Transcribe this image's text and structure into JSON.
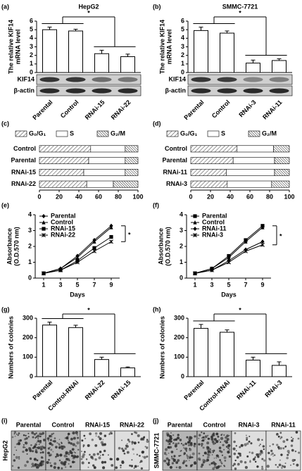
{
  "chart_data": [
    {
      "type": "bar",
      "label": "(a)",
      "title": "HepG2",
      "ylabel": [
        "The relative KIF14",
        "mRNA level"
      ],
      "categories": [
        "Parental",
        "Control",
        "RNAi-15",
        "RNAi-22"
      ],
      "values": [
        5.0,
        4.85,
        2.2,
        1.85
      ],
      "errors": [
        0.3,
        0.2,
        0.4,
        0.3
      ],
      "ylim": [
        0,
        6
      ],
      "yticks": [
        0,
        1,
        2,
        3,
        4,
        5,
        6
      ],
      "annotation": "*",
      "blot_labels": [
        "KIF14",
        "β-actin"
      ]
    },
    {
      "type": "bar",
      "label": "(b)",
      "title": "SMMC-7721",
      "ylabel": [
        "The relative KIF14",
        "mRNA level"
      ],
      "categories": [
        "Parental",
        "Control",
        "RNAi-3",
        "RNAi-11"
      ],
      "values": [
        4.9,
        4.6,
        1.1,
        1.4
      ],
      "errors": [
        0.4,
        0.25,
        0.35,
        0.2
      ],
      "ylim": [
        0,
        6
      ],
      "yticks": [
        0,
        1,
        2,
        3,
        4,
        5,
        6
      ],
      "annotation": "*",
      "blot_labels": [
        "KIF14",
        "β-actin"
      ]
    },
    {
      "type": "hbar-stacked",
      "label": "(c)",
      "categories": [
        "Control",
        "Parental",
        "RNAi-15",
        "RNAi-22"
      ],
      "series": [
        {
          "name": "G₀/G₁",
          "pattern": "hatch",
          "values": [
            52,
            50,
            45,
            48
          ]
        },
        {
          "name": "S",
          "pattern": "none",
          "values": [
            35,
            37,
            42,
            27
          ]
        },
        {
          "name": "G₂/M",
          "pattern": "dense-hatch",
          "values": [
            13,
            13,
            13,
            25
          ]
        }
      ],
      "xlim": [
        0,
        100
      ],
      "xticks": [
        0,
        20,
        40,
        60,
        80,
        100
      ]
    },
    {
      "type": "hbar-stacked",
      "label": "(d)",
      "categories": [
        "Control",
        "Parental",
        "RNAi-11",
        "RNAi-3"
      ],
      "series": [
        {
          "name": "G₀/G₁",
          "pattern": "hatch",
          "values": [
            47,
            43,
            36,
            37
          ]
        },
        {
          "name": "S",
          "pattern": "none",
          "values": [
            37,
            42,
            49,
            45
          ]
        },
        {
          "name": "G₂/M",
          "pattern": "dense-hatch",
          "values": [
            16,
            15,
            15,
            18
          ]
        }
      ],
      "xlim": [
        0,
        100
      ],
      "xticks": [
        0,
        20,
        40,
        60,
        80,
        100
      ]
    },
    {
      "type": "line",
      "label": "(e)",
      "xlabel": "Days",
      "ylabel": [
        "Absorbance",
        "(O.D.570 nm)"
      ],
      "x": [
        1,
        3,
        5,
        7,
        9
      ],
      "xlim": [
        0,
        10
      ],
      "xticks": [
        1,
        3,
        5,
        7,
        9
      ],
      "ylim": [
        0,
        4
      ],
      "yticks": [
        0,
        1,
        2,
        3,
        4
      ],
      "annotation": "*",
      "series": [
        {
          "name": "Parental",
          "marker": "diamond",
          "values": [
            0.3,
            0.6,
            1.4,
            2.4,
            3.3
          ]
        },
        {
          "name": "Control",
          "marker": "triangle",
          "values": [
            0.3,
            0.6,
            1.3,
            2.3,
            3.2
          ]
        },
        {
          "name": "RNAi-15",
          "marker": "square",
          "values": [
            0.3,
            0.5,
            1.1,
            1.9,
            2.6
          ]
        },
        {
          "name": "RNAi-22",
          "marker": "cross",
          "values": [
            0.3,
            0.5,
            1.0,
            1.7,
            2.3
          ]
        }
      ]
    },
    {
      "type": "line",
      "label": "(f)",
      "xlabel": "Days",
      "ylabel": [
        "Absorbance",
        "(O.D.570 nm)"
      ],
      "x": [
        1,
        3,
        5,
        7,
        9
      ],
      "xlim": [
        0,
        10
      ],
      "xticks": [
        1,
        3,
        5,
        7,
        9
      ],
      "ylim": [
        0,
        4
      ],
      "yticks": [
        0,
        1,
        2,
        3,
        4
      ],
      "annotation": "*",
      "series": [
        {
          "name": "Parental",
          "marker": "square",
          "values": [
            0.3,
            0.6,
            1.4,
            2.4,
            3.3
          ]
        },
        {
          "name": "Control",
          "marker": "triangle",
          "values": [
            0.3,
            0.6,
            1.3,
            2.3,
            3.2
          ]
        },
        {
          "name": "RNAi-11",
          "marker": "diamond",
          "values": [
            0.3,
            0.5,
            1.1,
            1.8,
            2.3
          ]
        },
        {
          "name": "RNAi-3",
          "marker": "cross",
          "values": [
            0.3,
            0.5,
            1.0,
            1.7,
            2.1
          ]
        }
      ]
    },
    {
      "type": "bar",
      "label": "(g)",
      "ylabel": [
        "Numbers of colonies"
      ],
      "categories": [
        "Parental",
        "Control-RNAi",
        "RNAi-22",
        "RNAi-15"
      ],
      "values": [
        265,
        252,
        88,
        45
      ],
      "errors": [
        15,
        12,
        12,
        5
      ],
      "ylim": [
        0,
        300
      ],
      "yticks": [
        0,
        100,
        200,
        300
      ],
      "annotation": "*"
    },
    {
      "type": "bar",
      "label": "(h)",
      "ylabel": [
        "Numbers of colonies"
      ],
      "categories": [
        "Parental",
        "Control-RNAi",
        "RNAi-11",
        "RNAi-3"
      ],
      "values": [
        248,
        228,
        85,
        58
      ],
      "errors": [
        20,
        12,
        15,
        18
      ],
      "ylim": [
        0,
        300
      ],
      "yticks": [
        0,
        100,
        200,
        300
      ],
      "annotation": "*"
    },
    {
      "type": "images",
      "label": "(i)",
      "side_label": "HepG2",
      "categories": [
        "Parental",
        "Control",
        "RNAi-15",
        "RNAi-22"
      ]
    },
    {
      "type": "images",
      "label": "(j)",
      "side_label": "SMMC-7721",
      "categories": [
        "Parental",
        "Control",
        "RNAi-3",
        "RNAi-11"
      ]
    }
  ]
}
